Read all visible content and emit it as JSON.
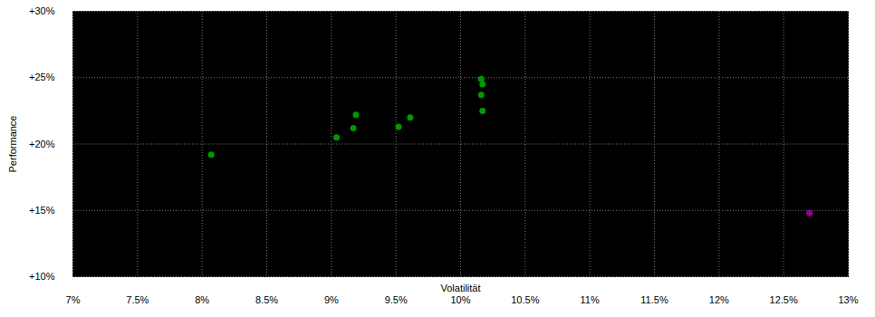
{
  "chart_data": {
    "type": "scatter",
    "x_label": "Volatilität",
    "y_label": "Performance",
    "x": [
      8.07,
      9.04,
      9.17,
      9.19,
      9.52,
      9.61,
      10.16,
      10.17,
      10.16,
      10.17,
      12.7
    ],
    "values": [
      19.2,
      20.5,
      21.2,
      22.2,
      21.3,
      22.0,
      24.9,
      24.5,
      23.7,
      22.5,
      14.8
    ],
    "colors": [
      "#009900",
      "#009900",
      "#009900",
      "#009900",
      "#009900",
      "#009900",
      "#009900",
      "#009900",
      "#009900",
      "#009900",
      "#990099"
    ],
    "marker": "circle",
    "xlim": [
      7,
      13
    ],
    "ylim": [
      10,
      30
    ],
    "xticks": [
      {
        "value": 7,
        "label": "7%"
      },
      {
        "value": 7.5,
        "label": "7.5%"
      },
      {
        "value": 8,
        "label": "8%"
      },
      {
        "value": 8.5,
        "label": "8.5%"
      },
      {
        "value": 9,
        "label": "9%"
      },
      {
        "value": 9.5,
        "label": "9.5%"
      },
      {
        "value": 10,
        "label": "10%"
      },
      {
        "value": 10.5,
        "label": "10.5%"
      },
      {
        "value": 11,
        "label": "11%"
      },
      {
        "value": 11.5,
        "label": "11.5%"
      },
      {
        "value": 12,
        "label": "12%"
      },
      {
        "value": 12.5,
        "label": "12.5%"
      },
      {
        "value": 13,
        "label": "13%"
      }
    ],
    "yticks": [
      {
        "value": 10,
        "label": "+10%"
      },
      {
        "value": 15,
        "label": "+15%"
      },
      {
        "value": 20,
        "label": "+20%"
      },
      {
        "value": 25,
        "label": "+25%"
      },
      {
        "value": 30,
        "label": "+30%"
      }
    ],
    "grid": true
  }
}
